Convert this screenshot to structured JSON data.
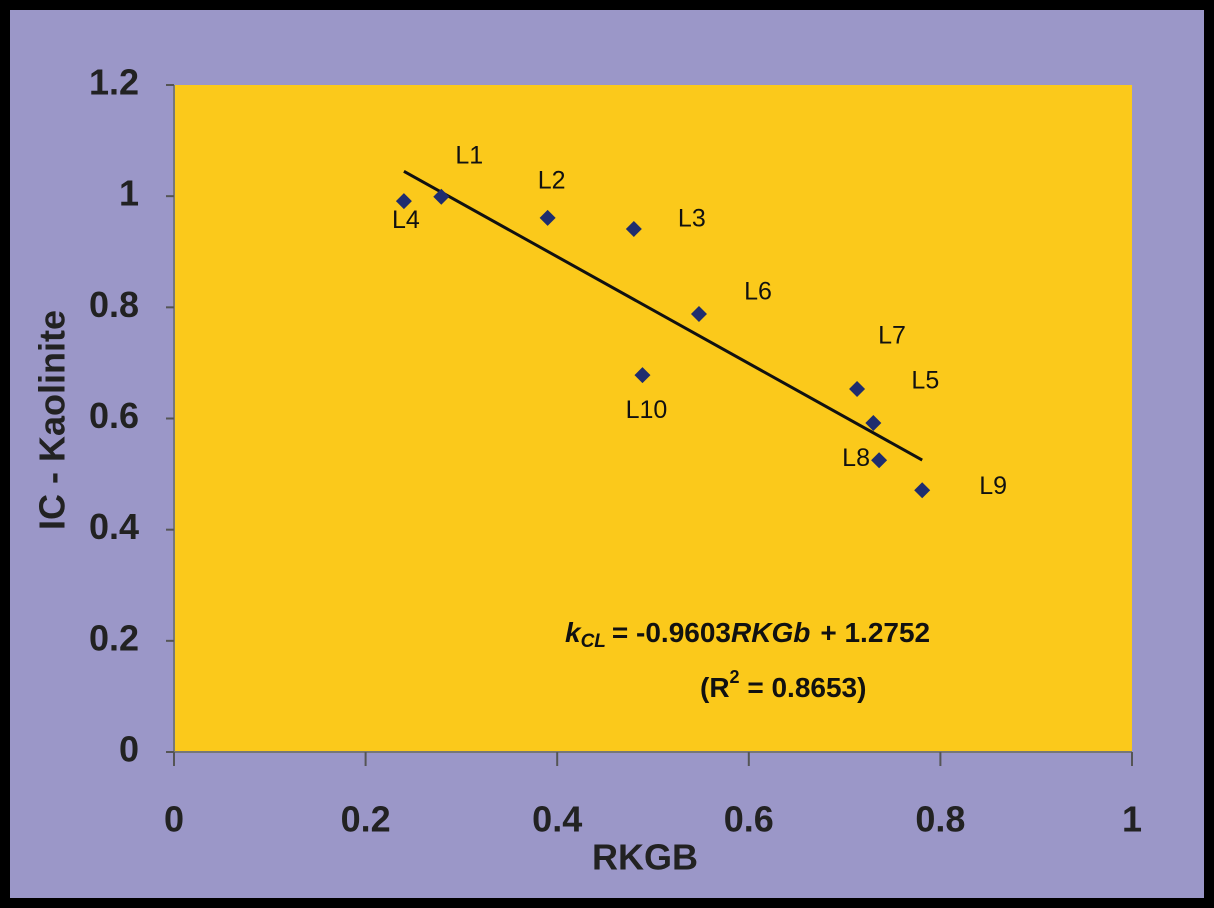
{
  "chart_data": {
    "type": "scatter",
    "x_label": "RKGB",
    "y_label": "IC - Kaolinite",
    "point_labels": [
      "L1",
      "L2",
      "L3",
      "L4",
      "L5",
      "L6",
      "L7",
      "L8",
      "L9",
      "L10"
    ],
    "x": [
      0.279,
      0.39,
      0.48,
      0.24,
      0.73,
      0.548,
      0.713,
      0.736,
      0.781,
      0.489
    ],
    "y": [
      0.999,
      0.961,
      0.941,
      0.991,
      0.592,
      0.788,
      0.653,
      0.525,
      0.471,
      0.678
    ],
    "color": "#1f2d6e",
    "trendline": {
      "slope": -0.9603,
      "intercept": 1.2752,
      "color": "#111111"
    },
    "equation": {
      "lhs": "k",
      "lhs_sub": "CL",
      "eq": "= -0.9603",
      "var": "RKGb",
      "rest": "+ 1.2752"
    },
    "r_squared": {
      "open": "(R",
      "sup": "2",
      "rest": " = 0.8653)"
    },
    "xlim": [
      0,
      1
    ],
    "ylim": [
      0,
      1.2
    ],
    "xticks": [
      0,
      0.2,
      0.4,
      0.6,
      0.8,
      1
    ],
    "yticks": [
      0,
      0.2,
      0.4,
      0.6,
      0.8,
      1,
      1.2
    ],
    "plot_background": "#fbc91b",
    "background": "#9b97c8"
  }
}
